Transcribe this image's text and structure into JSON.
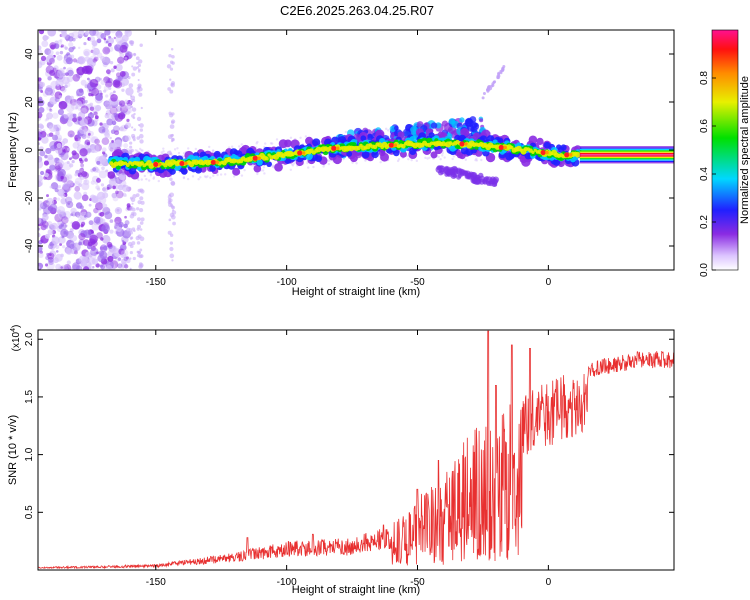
{
  "title": "C2E6.2025.263.04.25.R07",
  "chart_data": [
    {
      "type": "heatmap",
      "xlabel": "Height of straight line (km)",
      "ylabel": "Frequency (Hz)",
      "xlim": [
        -195,
        48
      ],
      "ylim": [
        -50,
        50
      ],
      "xticks": [
        -150,
        -100,
        -50,
        0
      ],
      "yticks": [
        -40,
        -20,
        0,
        20,
        40
      ],
      "colorbar": {
        "label": "Normalized spectral amplitude",
        "range": [
          0,
          1
        ],
        "ticks": [
          "0.0",
          "0.2",
          "0.4",
          "0.6",
          "0.8"
        ]
      },
      "ridge_center_hz": [
        {
          "x": -167,
          "y": -6
        },
        {
          "x": -150,
          "y": -6
        },
        {
          "x": -125,
          "y": -5
        },
        {
          "x": -100,
          "y": -2
        },
        {
          "x": -80,
          "y": 1
        },
        {
          "x": -60,
          "y": 2
        },
        {
          "x": -40,
          "y": 3
        },
        {
          "x": -25,
          "y": 2
        },
        {
          "x": -10,
          "y": 0
        },
        {
          "x": 5,
          "y": -2
        },
        {
          "x": 20,
          "y": -2
        },
        {
          "x": 48,
          "y": -2
        }
      ]
    },
    {
      "type": "line",
      "xlabel": "Height of straight line (km)",
      "ylabel": "SNR (10 * v/v)",
      "y_multiplier": "(x10",
      "y_multiplier_exp": "4",
      "y_multiplier_close": ")",
      "xlim": [
        -195,
        48
      ],
      "ylim": [
        0,
        20800
      ],
      "xticks": [
        -150,
        -100,
        -50,
        0
      ],
      "yticks": [
        5000,
        10000,
        15000,
        20000
      ],
      "ytick_labels": [
        "0.5",
        "1.0",
        "1.5",
        "2.0"
      ],
      "color": "#e83030",
      "envelope": [
        {
          "x": -195,
          "y": 250
        },
        {
          "x": -150,
          "y": 500
        },
        {
          "x": -120,
          "y": 1500
        },
        {
          "x": -100,
          "y": 2500
        },
        {
          "x": -75,
          "y": 2800
        },
        {
          "x": -60,
          "y": 4000
        },
        {
          "x": -50,
          "y": 6500
        },
        {
          "x": -40,
          "y": 9000
        },
        {
          "x": -30,
          "y": 12000
        },
        {
          "x": -20,
          "y": 14000
        },
        {
          "x": -10,
          "y": 15000
        },
        {
          "x": 0,
          "y": 16500
        },
        {
          "x": 10,
          "y": 17500
        },
        {
          "x": 20,
          "y": 18300
        },
        {
          "x": 35,
          "y": 19000
        },
        {
          "x": 48,
          "y": 19000
        }
      ],
      "spikes": [
        {
          "x": -23,
          "y": 20700
        },
        {
          "x": -20,
          "y": 16000
        },
        {
          "x": -14,
          "y": 19500
        },
        {
          "x": -7,
          "y": 19200
        },
        {
          "x": -50,
          "y": 7000
        },
        {
          "x": -42,
          "y": 9500
        },
        {
          "x": -115,
          "y": 2800
        },
        {
          "x": -90,
          "y": 3100
        },
        {
          "x": -63,
          "y": 3900
        }
      ]
    }
  ]
}
